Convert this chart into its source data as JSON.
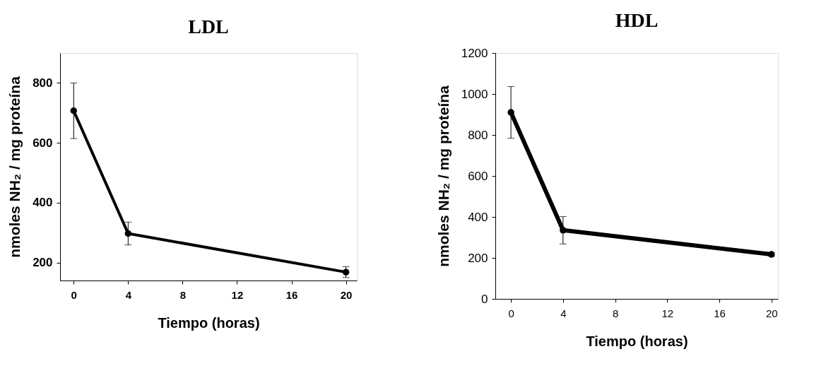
{
  "chart_data": [
    {
      "type": "line",
      "title": "LDL",
      "xlabel": "Tiempo (horas)",
      "ylabel": "nmoles NH₂ / mg proteína",
      "x": [
        0,
        4,
        20
      ],
      "series": [
        {
          "color": "#000000",
          "values": [
            707,
            297,
            168
          ],
          "errors": [
            93,
            38,
            18
          ]
        }
      ],
      "xlim": [
        -1,
        20.8
      ],
      "xticks": [
        0,
        4,
        8,
        12,
        16,
        20
      ],
      "ylim": [
        140,
        900
      ],
      "yticks": [
        200,
        400,
        600,
        800
      ],
      "marker": "circle",
      "line_style": "solid",
      "grid": false
    },
    {
      "type": "line",
      "title": "HDL",
      "xlabel": "Tiempo (horas)",
      "ylabel": "nmoles NH₂ / mg proteína",
      "x": [
        0,
        4,
        20
      ],
      "series": [
        {
          "color": "#000000",
          "values": [
            910,
            335,
            217
          ],
          "errors": [
            126,
            67,
            8
          ]
        }
      ],
      "xlim": [
        -1.2,
        20.5
      ],
      "xticks": [
        0,
        4,
        8,
        12,
        16,
        20
      ],
      "ylim": [
        0,
        1200
      ],
      "yticks": [
        0,
        200,
        400,
        600,
        800,
        1000,
        1200
      ],
      "marker": "circle",
      "line_style": "solid",
      "grid": false
    }
  ]
}
